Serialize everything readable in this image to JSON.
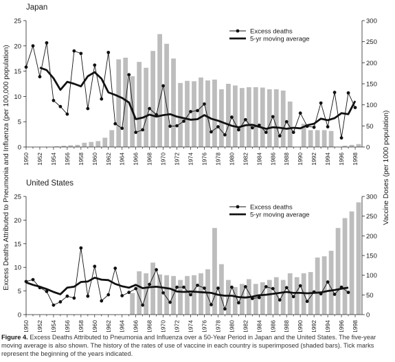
{
  "chart_data": [
    {
      "type": "bar",
      "title": "Japan",
      "ylabel": "Excess Deaths Attributed to Pneumonia and Influenza (per 100,000 population)",
      "y2label": "Vaccine Doses (per 1000 population)",
      "ylim": [
        0,
        25
      ],
      "y2lim": [
        0,
        300
      ],
      "yticks": [
        0,
        5,
        10,
        15,
        20,
        25
      ],
      "y2ticks": [
        0,
        50,
        100,
        150,
        200,
        250,
        300
      ],
      "xrange": [
        1950,
        1999
      ],
      "xtick_labels": [
        "1950",
        "1952",
        "1954",
        "1956",
        "1958",
        "1960",
        "1962",
        "1964",
        "1966",
        "1968",
        "1970",
        "1972",
        "1974",
        "1976",
        "1978",
        "1980",
        "1982",
        "1984",
        "1986",
        "1988",
        "1990",
        "1992",
        "1994",
        "1996",
        "1998"
      ],
      "legend": {
        "position": "top-right",
        "entries": [
          "Excess deaths",
          "5-yr moving average"
        ]
      },
      "series": [
        {
          "name": "Vaccine doses",
          "axis": "right",
          "style": "bars",
          "color": "#bdbdbd",
          "x": [
            1950,
            1951,
            1952,
            1953,
            1954,
            1955,
            1956,
            1957,
            1958,
            1959,
            1960,
            1961,
            1962,
            1963,
            1964,
            1965,
            1966,
            1967,
            1968,
            1969,
            1970,
            1971,
            1972,
            1973,
            1974,
            1975,
            1976,
            1977,
            1978,
            1979,
            1980,
            1981,
            1982,
            1983,
            1984,
            1985,
            1986,
            1987,
            1988,
            1989,
            1990,
            1991,
            1992,
            1993,
            1994,
            1995,
            1996,
            1997,
            1998
          ],
          "values": [
            0,
            0,
            0,
            0,
            2,
            3,
            4,
            5,
            10,
            12,
            14,
            22,
            40,
            208,
            212,
            168,
            202,
            188,
            228,
            268,
            245,
            210,
            152,
            157,
            156,
            165,
            158,
            160,
            137,
            150,
            146,
            140,
            142,
            142,
            141,
            137,
            137,
            134,
            108,
            0,
            55,
            40,
            40,
            40,
            38,
            0,
            3,
            5,
            7
          ]
        },
        {
          "name": "Excess deaths",
          "axis": "left",
          "style": "line-markers",
          "x": [
            1950,
            1951,
            1952,
            1953,
            1954,
            1955,
            1956,
            1957,
            1958,
            1959,
            1960,
            1961,
            1962,
            1963,
            1964,
            1965,
            1966,
            1967,
            1968,
            1969,
            1970,
            1971,
            1972,
            1973,
            1974,
            1975,
            1976,
            1977,
            1978,
            1979,
            1980,
            1981,
            1982,
            1983,
            1984,
            1985,
            1986,
            1987,
            1988,
            1989,
            1990,
            1991,
            1992,
            1993,
            1994,
            1995,
            1996,
            1997,
            1998
          ],
          "values": [
            15.8,
            20.0,
            13.9,
            20.6,
            9.2,
            8.0,
            6.5,
            19.0,
            18.5,
            7.6,
            16.2,
            9.5,
            18.7,
            4.6,
            3.7,
            14.3,
            2.9,
            3.4,
            7.6,
            6.4,
            12.1,
            4.1,
            4.2,
            5.1,
            7.0,
            7.2,
            8.5,
            3.0,
            4.0,
            2.4,
            5.9,
            3.4,
            5.4,
            3.8,
            4.3,
            2.9,
            6.0,
            2.2,
            5.0,
            2.9,
            6.7,
            4.1,
            3.9,
            8.7,
            4.0,
            10.8,
            1.8,
            10.7,
            7.8
          ]
        },
        {
          "name": "5-yr moving average",
          "axis": "left",
          "style": "thick-line",
          "x": [
            1952,
            1953,
            1954,
            1955,
            1956,
            1957,
            1958,
            1959,
            1960,
            1961,
            1962,
            1963,
            1964,
            1965,
            1966,
            1967,
            1968,
            1969,
            1970,
            1971,
            1972,
            1973,
            1974,
            1975,
            1976,
            1977,
            1978,
            1979,
            1980,
            1981,
            1982,
            1983,
            1984,
            1985,
            1986,
            1987,
            1988,
            1989,
            1990,
            1991,
            1992,
            1993,
            1994,
            1995,
            1996,
            1997,
            1998
          ],
          "values": [
            15.7,
            15.2,
            13.6,
            11.3,
            12.9,
            12.5,
            12.0,
            14.0,
            14.8,
            13.5,
            10.8,
            10.3,
            9.7,
            8.8,
            5.5,
            5.8,
            6.4,
            6.0,
            6.3,
            6.5,
            6.0,
            5.7,
            5.4,
            5.5,
            6.3,
            5.6,
            5.2,
            4.7,
            4.2,
            3.9,
            4.3,
            4.4,
            4.0,
            3.6,
            3.9,
            3.8,
            3.6,
            3.8,
            3.7,
            4.3,
            4.6,
            5.6,
            5.3,
            5.7,
            6.7,
            6.5,
            9.1
          ]
        }
      ]
    },
    {
      "type": "bar",
      "title": "United States",
      "ylabel": "Excess Deaths Attributed to Pneumonia and Influenza (per 100,000 population)",
      "y2label": "Vaccine Doses (per 1000 population)",
      "ylim": [
        0,
        25
      ],
      "y2lim": [
        0,
        300
      ],
      "yticks": [
        0,
        5,
        10,
        15,
        20,
        25
      ],
      "y2ticks": [
        0,
        50,
        100,
        150,
        200,
        250,
        300
      ],
      "xrange": [
        1950,
        1999
      ],
      "xtick_labels": [
        "1950",
        "1952",
        "1954",
        "1956",
        "1958",
        "1960",
        "1962",
        "1964",
        "1966",
        "1968",
        "1970",
        "1972",
        "1974",
        "1976",
        "1978",
        "1980",
        "1982",
        "1984",
        "1986",
        "1988",
        "1990",
        "1992",
        "1994",
        "1996",
        "1998"
      ],
      "legend": {
        "position": "top-right",
        "entries": [
          "Excess deaths",
          "5-yr moving average"
        ]
      },
      "series": [
        {
          "name": "Vaccine doses",
          "axis": "right",
          "style": "bars",
          "color": "#bdbdbd",
          "x": [
            1965,
            1966,
            1967,
            1968,
            1969,
            1970,
            1971,
            1972,
            1973,
            1974,
            1975,
            1976,
            1977,
            1978,
            1979,
            1980,
            1981,
            1982,
            1983,
            1984,
            1985,
            1986,
            1987,
            1988,
            1989,
            1990,
            1991,
            1992,
            1993,
            1994,
            1995,
            1996,
            1997,
            1998
          ],
          "values": [
            55,
            110,
            105,
            132,
            102,
            100,
            98,
            88,
            98,
            100,
            105,
            115,
            220,
            128,
            88,
            70,
            78,
            90,
            78,
            82,
            88,
            95,
            88,
            105,
            95,
            105,
            108,
            145,
            148,
            162,
            220,
            245,
            262,
            285
          ]
        },
        {
          "name": "Excess deaths",
          "axis": "left",
          "style": "line-markers",
          "x": [
            1950,
            1951,
            1952,
            1953,
            1954,
            1955,
            1956,
            1957,
            1958,
            1959,
            1960,
            1961,
            1962,
            1963,
            1964,
            1965,
            1966,
            1967,
            1968,
            1969,
            1970,
            1971,
            1972,
            1973,
            1974,
            1975,
            1976,
            1977,
            1978,
            1979,
            1980,
            1981,
            1982,
            1983,
            1984,
            1985,
            1986,
            1987,
            1988,
            1989,
            1990,
            1991,
            1992,
            1993,
            1994,
            1995,
            1996,
            1997
          ],
          "values": [
            7.0,
            7.4,
            5.7,
            4.9,
            2.0,
            2.7,
            3.9,
            3.5,
            14.1,
            3.9,
            10.2,
            2.9,
            4.2,
            9.8,
            4.0,
            4.7,
            5.5,
            2.0,
            6.4,
            9.5,
            4.6,
            2.6,
            5.8,
            5.8,
            4.2,
            6.2,
            5.6,
            2.1,
            5.6,
            1.2,
            5.8,
            2.5,
            5.9,
            3.4,
            3.6,
            5.9,
            5.5,
            3.1,
            5.7,
            3.8,
            6.1,
            2.8,
            4.8,
            4.4,
            6.9,
            4.3,
            5.8,
            4.7
          ]
        },
        {
          "name": "5-yr moving average",
          "axis": "left",
          "style": "thick-line",
          "x": [
            1950,
            1951,
            1952,
            1953,
            1954,
            1955,
            1956,
            1957,
            1958,
            1959,
            1960,
            1961,
            1962,
            1963,
            1964,
            1965,
            1966,
            1967,
            1968,
            1969,
            1970,
            1971,
            1972,
            1973,
            1974,
            1975,
            1976,
            1977,
            1978,
            1979,
            1980,
            1981,
            1982,
            1983,
            1984,
            1985,
            1986,
            1987,
            1988,
            1989,
            1990,
            1991,
            1992,
            1993,
            1994,
            1995,
            1996,
            1997
          ],
          "values": [
            6.8,
            6.3,
            5.9,
            5.4,
            4.8,
            4.3,
            5.7,
            5.9,
            6.9,
            7.0,
            7.8,
            7.4,
            7.3,
            6.5,
            6.0,
            5.7,
            6.3,
            5.6,
            5.8,
            5.9,
            5.7,
            5.5,
            4.9,
            4.8,
            4.9,
            4.8,
            4.7,
            4.6,
            4.2,
            4.0,
            4.0,
            3.7,
            3.6,
            3.8,
            4.1,
            4.2,
            4.4,
            4.6,
            4.8,
            4.6,
            4.6,
            4.5,
            4.6,
            4.7,
            5.0,
            5.2,
            5.5,
            5.7
          ]
        }
      ]
    }
  ],
  "caption": {
    "label": "Figure 4.",
    "title": "Excess Deaths Attributed to Pneumonia and Influenza over a 50-Year Period in Japan and the United States.",
    "body": "The five-year moving average is also shown. The history of the rates of use of vaccine in each country is superimposed (shaded bars). Tick marks represent the beginning of the years indicated."
  },
  "colors": {
    "bars": "#bdbdbd",
    "lines": "#111111",
    "axis": "#222222"
  }
}
